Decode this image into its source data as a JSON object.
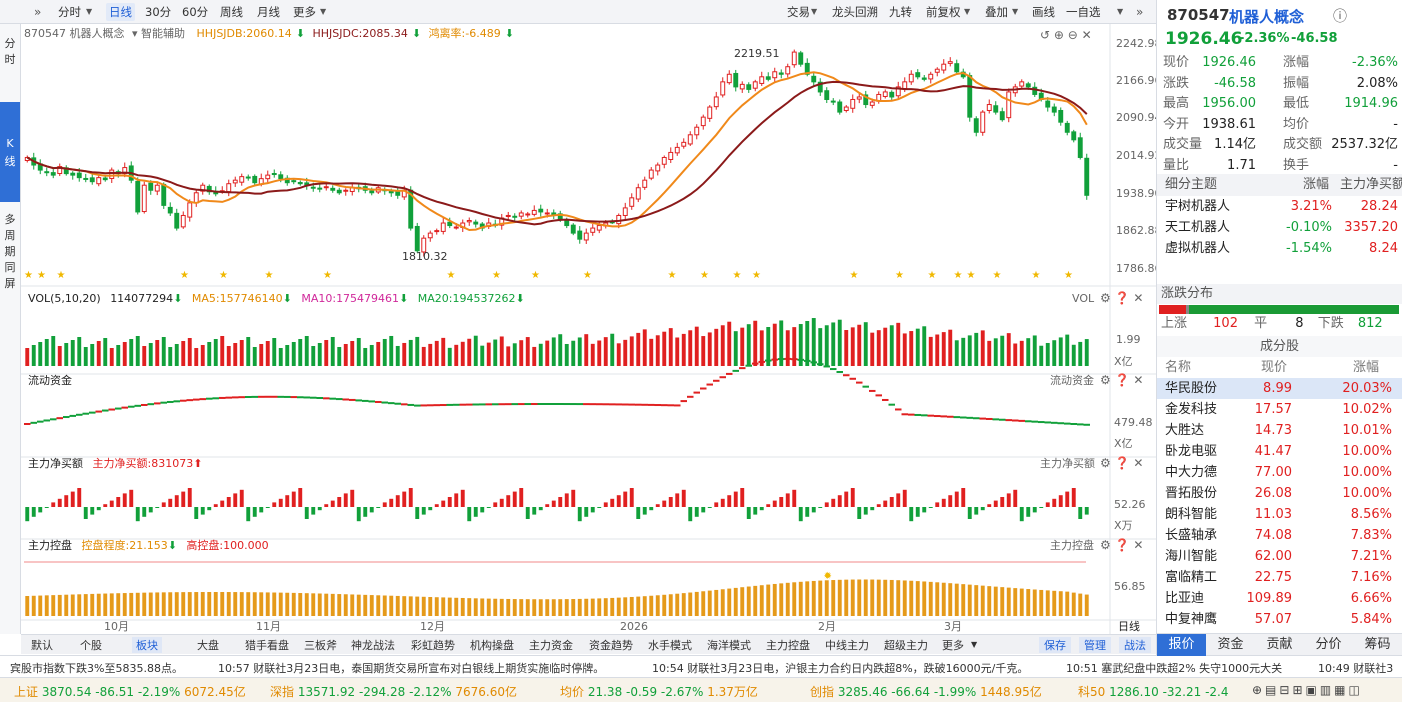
{
  "topbar": {
    "left_arrow": "»",
    "periods": [
      "分时",
      "日线",
      "30分",
      "60分",
      "周线",
      "月线",
      "更多"
    ],
    "active_period": "日线",
    "right_items": [
      "交易",
      "龙头回溯",
      "九转",
      "前复权",
      "叠加",
      "画线",
      "一自选"
    ],
    "right_arrow": "»"
  },
  "leftbar": {
    "items": [
      "分",
      "时",
      "K",
      "线",
      "多",
      "周",
      "期",
      "同",
      "屏"
    ]
  },
  "info": {
    "code_name": "870547 机器人概念",
    "assist": "智能辅助",
    "hhjsjdb": "HHJSJDB:2060.14",
    "hhjsjdc": "HHJSJDC:2085.34",
    "rate": "鸿离率:-6.489"
  },
  "price_axis": [
    "2242.98",
    "2166.96",
    "2090.94",
    "2014.92",
    "1938.90",
    "1862.88",
    "1786.86"
  ],
  "price_marks": {
    "high": "2219.51",
    "low": "1810.32"
  },
  "vol_panel": {
    "title": "VOL(5,10,20)",
    "v": "114077294",
    "ma5": "MA5:157746140",
    "ma10": "MA10:175479461",
    "ma20": "MA20:194537262",
    "axis": "1.99",
    "unit": "X亿",
    "right_label": "VOL"
  },
  "flow_panel": {
    "title": "流动资金",
    "axis": "479.48",
    "unit": "X亿",
    "right_label": "流动资金"
  },
  "net_panel": {
    "title": "主力净买额",
    "value": "主力净买额:831073",
    "axis": "52.26",
    "unit": "X万",
    "right_label": "主力净买额"
  },
  "ctrl_panel": {
    "title": "主力控盘",
    "degree": "控盘程度:21.153",
    "high": "高控盘:100.000",
    "axis": "56.85",
    "right_label": "主力控盘"
  },
  "xaxis": [
    "10月",
    "11月",
    "12月",
    "2026",
    "2月",
    "3月"
  ],
  "period_label": "日线",
  "bottom_tabs": [
    "默认",
    "个股",
    "板块",
    "大盘",
    "猎手看盘",
    "三板斧",
    "神龙战法",
    "彩虹趋势",
    "机构操盘",
    "主力资金",
    "资金趋势",
    "水手模式",
    "海洋模式",
    "主力控盘",
    "中线主力",
    "超级主力",
    "更多"
  ],
  "bottom_right": [
    "保存",
    "管理",
    "战法"
  ],
  "news": [
    {
      "time": "",
      "text": "宾股市指数下跌3%至5835.88点。"
    },
    {
      "time": "10:57",
      "text": "财联社3月23日电，泰国期货交易所宣布对白银线上期货实施临时停牌。"
    },
    {
      "time": "10:54",
      "text": "财联社3月23日电，沪银主力合约日内跌超8%，跌破16000元/千克。"
    },
    {
      "time": "10:51",
      "text": "塞武纪盘中跌超2% 失守1000元大关"
    },
    {
      "time": "10:49",
      "text": "财联社3"
    }
  ],
  "indices": [
    {
      "name": "上证",
      "price": "3870.54",
      "chg": "-86.51",
      "pct": "-2.19%",
      "amt": "6072.45亿"
    },
    {
      "name": "深指",
      "price": "13571.92",
      "chg": "-294.28",
      "pct": "-2.12%",
      "amt": "7676.60亿"
    },
    {
      "name": "均价",
      "price": "21.38",
      "chg": "-0.59",
      "pct": "-2.67%",
      "amt": "1.37万亿"
    },
    {
      "name": "创指",
      "price": "3285.46",
      "chg": "-66.64",
      "pct": "-1.99%",
      "amt": "1448.95亿"
    },
    {
      "name": "科50",
      "price": "1286.10",
      "chg": "-32.21",
      "pct": "-2.4",
      "amt": ""
    }
  ],
  "quote": {
    "code": "870547",
    "name": "机器人概念",
    "price": "1926.46",
    "pct": "-2.36%",
    "chg": "-46.58",
    "fields": [
      [
        "现价",
        "1926.46",
        "涨幅",
        "-2.36%"
      ],
      [
        "涨跌",
        "-46.58",
        "振幅",
        "2.08%"
      ],
      [
        "最高",
        "1956.00",
        "最低",
        "1914.96"
      ],
      [
        "今开",
        "1938.61",
        "均价",
        "-"
      ],
      [
        "成交量",
        "1.14亿",
        "成交额",
        "2537.32亿"
      ],
      [
        "量比",
        "1.71",
        "换手",
        "-"
      ]
    ]
  },
  "themes": {
    "headers": [
      "细分主题",
      "涨幅",
      "主力净买额"
    ],
    "rows": [
      [
        "宇树机器人",
        "3.21%",
        "28.24"
      ],
      [
        "天工机器人",
        "-0.10%",
        "3357.20"
      ],
      [
        "虚拟机器人",
        "-1.54%",
        "8.24"
      ]
    ]
  },
  "distribution": {
    "title": "涨跌分布",
    "up_label": "上涨",
    "up": "102",
    "flat_label": "平",
    "flat": "8",
    "down_label": "下跌",
    "down": "812"
  },
  "constituents": {
    "title": "成分股",
    "headers": [
      "名称",
      "现价",
      "涨幅"
    ],
    "rows": [
      [
        "华民股份",
        "8.99",
        "20.03%"
      ],
      [
        "金发科技",
        "17.57",
        "10.02%"
      ],
      [
        "大胜达",
        "14.73",
        "10.01%"
      ],
      [
        "卧龙电驱",
        "41.47",
        "10.00%"
      ],
      [
        "中大力德",
        "77.00",
        "10.00%"
      ],
      [
        "晋拓股份",
        "26.08",
        "10.00%"
      ],
      [
        "朗科智能",
        "11.03",
        "8.56%"
      ],
      [
        "长盛轴承",
        "74.08",
        "7.83%"
      ],
      [
        "海川智能",
        "62.00",
        "7.21%"
      ],
      [
        "富临精工",
        "22.75",
        "7.16%"
      ],
      [
        "比亚迪",
        "109.89",
        "6.66%"
      ],
      [
        "中复神鹰",
        "57.07",
        "5.84%"
      ]
    ]
  },
  "right_tabs": [
    "报价",
    "资金",
    "贡献",
    "分价",
    "筹码"
  ],
  "colors": {
    "up": "#e02020",
    "down": "#11a03a",
    "ma5": "#f0891a",
    "ma20": "#8b1a1a",
    "ctrl": "#e59a1a"
  },
  "chart_data": {
    "type": "candlestick",
    "ylim": [
      1786.86,
      2242.98
    ],
    "closes": [
      2010,
      1995,
      1985,
      1980,
      1975,
      1992,
      1978,
      1975,
      1970,
      1968,
      1962,
      1970,
      1966,
      1985,
      1978,
      1990,
      1965,
      1902,
      1955,
      1945,
      1955,
      1915,
      1900,
      1870,
      1895,
      1920,
      1940,
      1955,
      1942,
      1938,
      1944,
      1958,
      1965,
      1972,
      1970,
      1960,
      1968,
      1975,
      1978,
      1968,
      1960,
      1962,
      1958,
      1955,
      1950,
      1948,
      1952,
      1945,
      1940,
      1945,
      1950,
      1948,
      1945,
      1940,
      1950,
      1945,
      1940,
      1935,
      1945,
      1870,
      1825,
      1850,
      1860,
      1865,
      1880,
      1875,
      1872,
      1880,
      1885,
      1878,
      1870,
      1880,
      1875,
      1890,
      1895,
      1892,
      1900,
      1898,
      1905,
      1902,
      1900,
      1895,
      1888,
      1875,
      1860,
      1848,
      1860,
      1870,
      1875,
      1880,
      1882,
      1895,
      1910,
      1930,
      1950,
      1965,
      1985,
      1995,
      2010,
      2020,
      2030,
      2040,
      2055,
      2070,
      2090,
      2110,
      2130,
      2160,
      2175,
      2150,
      2155,
      2145,
      2160,
      2170,
      2165,
      2180,
      2175,
      2190,
      2219,
      2195,
      2175,
      2160,
      2140,
      2125,
      2120,
      2100,
      2110,
      2125,
      2130,
      2115,
      2120,
      2135,
      2140,
      2130,
      2150,
      2160,
      2175,
      2170,
      2165,
      2175,
      2185,
      2195,
      2200,
      2180,
      2170,
      2090,
      2060,
      2100,
      2115,
      2100,
      2085,
      2140,
      2150,
      2160,
      2150,
      2135,
      2125,
      2110,
      2100,
      2080,
      2060,
      2045,
      2010,
      1935
    ]
  }
}
